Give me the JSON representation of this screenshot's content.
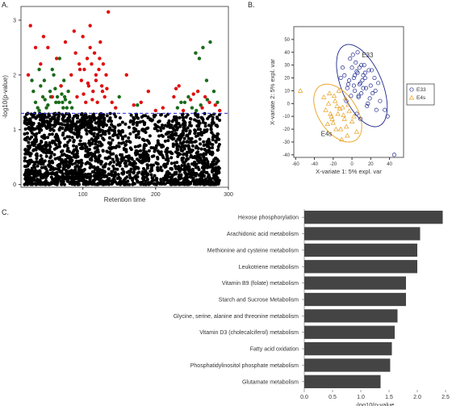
{
  "panels": {
    "a": "A.",
    "b": "B.",
    "c": "C."
  },
  "chart_data": [
    {
      "type": "scatter",
      "panel": "A.",
      "xlabel": "Retention time",
      "ylabel": "-log10(p-value)",
      "xlim": [
        15,
        300
      ],
      "ylim": [
        -0.05,
        3.25
      ],
      "xticks": [
        100,
        200,
        300
      ],
      "yticks": [
        0,
        1,
        2,
        3
      ],
      "threshold": 1.3,
      "threshold_style": "dashed blue",
      "series": [
        {
          "color": "#000000",
          "description_role": "not significant",
          "x": [],
          "y": []
        },
        {
          "color": "#1a6b1a",
          "description_role": "significant group 1",
          "x": [
            30,
            32,
            35,
            38,
            40,
            42,
            45,
            47,
            50,
            55,
            58,
            60,
            63,
            65,
            68,
            70,
            72,
            74,
            75,
            78,
            80,
            82,
            85,
            40,
            48,
            52,
            56,
            62,
            67,
            71,
            73,
            76,
            240,
            245,
            250,
            255,
            260,
            265,
            270,
            275,
            280,
            285,
            150,
            175,
            230,
            235,
            256,
            262,
            271
          ],
          "y": [
            1.9,
            1.7,
            1.5,
            1.4,
            2.1,
            1.8,
            1.6,
            1.9,
            1.4,
            1.7,
            2.1,
            2.0,
            1.5,
            1.6,
            2.3,
            1.8,
            1.5,
            1.9,
            1.6,
            1.4,
            1.7,
            1.5,
            1.4,
            1.35,
            1.55,
            1.45,
            1.6,
            1.75,
            1.5,
            1.65,
            1.4,
            1.55,
            1.5,
            1.6,
            1.4,
            2.4,
            2.3,
            2.5,
            1.9,
            2.6,
            1.7,
            1.5,
            1.6,
            1.45,
            1.4,
            1.5,
            1.35,
            1.45,
            1.55
          ]
        },
        {
          "color": "#e01010",
          "description_role": "significant group 2",
          "x": [
            25,
            28,
            35,
            42,
            46,
            52,
            58,
            64,
            70,
            76,
            84,
            88,
            90,
            92,
            95,
            98,
            100,
            102,
            104,
            106,
            108,
            110,
            112,
            114,
            116,
            118,
            120,
            122,
            124,
            126,
            128,
            130,
            132,
            135,
            140,
            145,
            160,
            170,
            180,
            190,
            200,
            210,
            225,
            228,
            232,
            238,
            248,
            252,
            258,
            264,
            268,
            274,
            282,
            288,
            110,
            118,
            123,
            127,
            96,
            101,
            107,
            113,
            133
          ],
          "y": [
            2.0,
            2.9,
            2.5,
            2.2,
            2.7,
            2.5,
            1.6,
            2.3,
            1.8,
            2.6,
            2.0,
            2.8,
            2.4,
            1.6,
            2.2,
            1.9,
            2.7,
            2.1,
            1.5,
            2.3,
            1.8,
            2.9,
            2.2,
            1.7,
            2.4,
            2.0,
            1.5,
            2.1,
            2.6,
            1.8,
            2.2,
            1.6,
            2.0,
            3.15,
            1.5,
            1.4,
            2.0,
            1.45,
            1.5,
            1.7,
            1.35,
            1.4,
            1.6,
            1.75,
            1.8,
            1.35,
            1.55,
            1.65,
            1.7,
            1.4,
            1.6,
            1.5,
            1.45,
            1.35,
            2.5,
            1.9,
            2.3,
            1.7,
            2.1,
            1.65,
            1.85,
            1.55,
            1.75
          ]
        }
      ]
    },
    {
      "type": "scatter",
      "panel": "B.",
      "xlabel": "X-variate 1: 5% expl. var",
      "ylabel": "X-variate 2: 5% expl. var",
      "xlim": [
        -62,
        55
      ],
      "ylim": [
        -42,
        60
      ],
      "xticks": [
        -60,
        -40,
        -20,
        0,
        20,
        40
      ],
      "yticks": [
        -40,
        -30,
        -20,
        -10,
        0,
        10,
        20,
        30,
        40,
        50
      ],
      "ellipse_labels": [
        "E33",
        "E4s"
      ],
      "legend": {
        "placement": "right",
        "entries": [
          "E33",
          "E4s"
        ]
      },
      "series": [
        {
          "name": "E33",
          "color": "#1f2a8c",
          "marker": "circle",
          "x": [
            2,
            5,
            8,
            10,
            12,
            -5,
            -3,
            0,
            3,
            6,
            9,
            14,
            18,
            20,
            22,
            -8,
            -2,
            4,
            7,
            11,
            15,
            25,
            30,
            35,
            -10,
            1,
            13,
            17,
            -4,
            6,
            10,
            16,
            24,
            28,
            -1,
            3,
            8,
            12,
            19,
            5,
            9,
            14,
            21,
            -6,
            2,
            7,
            45,
            38,
            -12,
            26
          ],
          "y": [
            20,
            25,
            15,
            30,
            22,
            12,
            18,
            28,
            10,
            24,
            16,
            20,
            26,
            14,
            8,
            22,
            35,
            32,
            5,
            18,
            12,
            10,
            2,
            -5,
            28,
            38,
            30,
            0,
            15,
            40,
            8,
            -2,
            20,
            16,
            6,
            22,
            28,
            12,
            4,
            -8,
            -12,
            24,
            26,
            2,
            14,
            6,
            -40,
            -10,
            20,
            -5
          ]
        },
        {
          "name": "E4s",
          "color": "#e8a020",
          "marker": "triangle",
          "x": [
            -55,
            -30,
            -28,
            -25,
            -22,
            -20,
            -18,
            -15,
            -12,
            -10,
            -8,
            -6,
            -5,
            -3,
            0,
            2,
            5,
            -24,
            -16,
            -14,
            -26,
            -19,
            -11,
            -7,
            -21,
            -13,
            -9,
            -17,
            -4,
            -23
          ],
          "y": [
            10,
            5,
            -5,
            0,
            -10,
            -15,
            2,
            -8,
            -20,
            -3,
            -12,
            -18,
            -25,
            -6,
            -14,
            -10,
            -22,
            8,
            -2,
            10,
            -16,
            6,
            -28,
            4,
            -12,
            -4,
            -9,
            -20,
            -1,
            -8
          ]
        }
      ]
    },
    {
      "type": "bar",
      "orientation": "horizontal",
      "panel": "C.",
      "xlabel": "-log10(p-value",
      "xlim": [
        0,
        2.5
      ],
      "xticks": [
        0.0,
        0.5,
        1.0,
        1.5,
        2.0,
        2.5
      ],
      "color": "#444444",
      "categories": [
        "Hexose phosphorylation",
        "Arachidonic acid metabolism",
        "Methionine and cysteine metabolism",
        "Leukotriene metabolism",
        "Vitamin B9 (folate) metabolism",
        "Starch and Sucrose Metabolism",
        "Glycine, serine, alanine and threonine metabolism",
        "Vitamin D3 (cholecalciferol) metabolism",
        "Fatty acid oxidation",
        "Phosphatidylinositol phosphate metabolism",
        "Glutamate metabolism"
      ],
      "values": [
        2.45,
        2.05,
        2.0,
        2.0,
        1.8,
        1.8,
        1.65,
        1.6,
        1.55,
        1.52,
        1.35
      ]
    }
  ]
}
